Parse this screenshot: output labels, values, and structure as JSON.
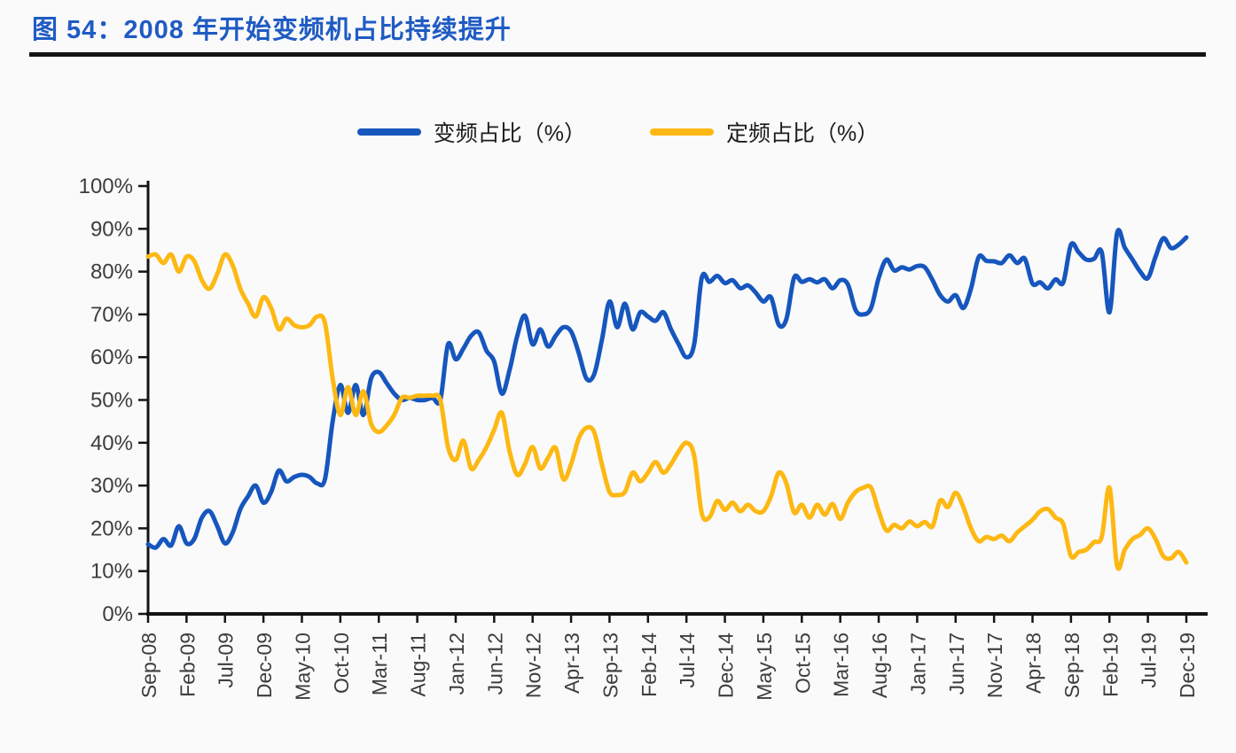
{
  "figure": {
    "title": "图 54：2008 年开始变频机占比持续提升"
  },
  "legend": [
    {
      "label": "变频占比（%）",
      "color": "#1656bd"
    },
    {
      "label": "定频占比（%）",
      "color": "#fdb813"
    }
  ],
  "axes": {
    "y_ticks": [
      "0%",
      "10%",
      "20%",
      "30%",
      "40%",
      "50%",
      "60%",
      "70%",
      "80%",
      "90%",
      "100%"
    ],
    "x_ticks": [
      "Sep-08",
      "Feb-09",
      "Jul-09",
      "Dec-09",
      "May-10",
      "Oct-10",
      "Mar-11",
      "Aug-11",
      "Jan-12",
      "Jun-12",
      "Nov-12",
      "Apr-13",
      "Sep-13",
      "Feb-14",
      "Jul-14",
      "Dec-14",
      "May-15",
      "Oct-15",
      "Mar-16",
      "Aug-16",
      "Jan-17",
      "Jun-17",
      "Nov-17",
      "Apr-18",
      "Sep-18",
      "Feb-19",
      "Jul-19",
      "Dec-19"
    ]
  },
  "colors": {
    "title_blue": "#1f5bc4",
    "axis_text": "#3d3d3d",
    "axis_line": "#141414",
    "background": "#fafafa"
  },
  "chart_data": {
    "type": "line",
    "title": "图 54：2008 年开始变频机占比持续提升",
    "x_resolution": "monthly",
    "x_start": "Sep-08",
    "x_end": "Dec-19",
    "x_tick_labels_shown": [
      "Sep-08",
      "Feb-09",
      "Jul-09",
      "Dec-09",
      "May-10",
      "Oct-10",
      "Mar-11",
      "Aug-11",
      "Jan-12",
      "Jun-12",
      "Nov-12",
      "Apr-13",
      "Sep-13",
      "Feb-14",
      "Jul-14",
      "Dec-14",
      "May-15",
      "Oct-15",
      "Mar-16",
      "Aug-16",
      "Jan-17",
      "Jun-17",
      "Nov-17",
      "Apr-18",
      "Sep-18",
      "Feb-19",
      "Jul-19",
      "Dec-19"
    ],
    "x_tick_step_months": 5,
    "ylim": [
      0,
      100
    ],
    "y_tick_step": 10,
    "grid": false,
    "legend_position": "top-center",
    "line_style": "smooth",
    "series": [
      {
        "name": "变频占比（%）",
        "color": "#1656bd",
        "values": [
          16.3,
          15.5,
          17.5,
          16,
          20.5,
          16.5,
          17.5,
          22.5,
          24,
          20.5,
          16.5,
          19,
          24.5,
          27.5,
          30,
          26,
          28.5,
          33.5,
          31,
          32,
          32.5,
          32,
          30.5,
          31.5,
          45,
          53.5,
          47,
          53.5,
          46.5,
          55,
          56.5,
          54,
          51.5,
          50,
          50.5,
          50,
          50,
          50.5,
          50,
          63,
          59.5,
          62,
          65,
          65.8,
          61.5,
          59,
          51.5,
          57,
          65,
          69.7,
          63,
          66.5,
          62.5,
          65,
          67,
          66,
          61,
          55,
          56,
          64,
          73,
          67,
          72.5,
          66.5,
          70.5,
          69.5,
          68.5,
          70.5,
          66.5,
          63,
          60,
          63,
          78.6,
          77.6,
          79,
          77.3,
          78,
          76.1,
          76.8,
          75.1,
          73,
          74,
          67.6,
          68.9,
          78.6,
          77.6,
          78.2,
          77.5,
          78.2,
          76.1,
          78,
          77,
          71,
          70,
          71.5,
          78.5,
          82.8,
          80.3,
          81,
          80.5,
          81.3,
          81,
          78,
          74.5,
          73,
          74.5,
          71.5,
          76,
          83.4,
          82.5,
          82.4,
          82,
          83.8,
          82,
          83,
          77.2,
          77.5,
          76.1,
          78.2,
          77.5,
          86.3,
          84.5,
          82.8,
          83,
          84.5,
          70.5,
          89,
          85.6,
          82.8,
          80,
          78.5,
          83.5,
          87.8,
          85.5,
          86.3,
          88
        ]
      },
      {
        "name": "定频占比（%）",
        "color": "#fdb813",
        "values": [
          83.5,
          84,
          82,
          84,
          80,
          83.5,
          82.5,
          78,
          76,
          79.5,
          84,
          81.5,
          76,
          72.5,
          69.5,
          74,
          71.5,
          66.5,
          69,
          67.5,
          67,
          67.5,
          69.5,
          68,
          55,
          46.5,
          53,
          46.5,
          52,
          44.5,
          42.5,
          44,
          46.5,
          50.5,
          50.5,
          51,
          51,
          51,
          50,
          39,
          36,
          40.5,
          34,
          36,
          39,
          43,
          47,
          38,
          32.5,
          35,
          39,
          34,
          36.5,
          38.8,
          31.5,
          35,
          41,
          43.5,
          42.5,
          35,
          28.5,
          27.8,
          28.5,
          33,
          31,
          33,
          35.5,
          33,
          35,
          38,
          40,
          37,
          23.5,
          22.6,
          26.4,
          24.3,
          26,
          24,
          25.5,
          24,
          24,
          27.5,
          33,
          30.5,
          23.7,
          25.5,
          22.5,
          25.5,
          23.2,
          25.7,
          22.2,
          26,
          28.5,
          29.5,
          29.5,
          24,
          19.5,
          20.8,
          20,
          21.6,
          20.5,
          21.5,
          20.5,
          26.5,
          25,
          28.3,
          25,
          20,
          17,
          18,
          17.5,
          18.3,
          17,
          19,
          20.5,
          22,
          24,
          24.5,
          22.5,
          21,
          13.5,
          14.5,
          15,
          16.8,
          18,
          29.5,
          11.2,
          15,
          17.5,
          18.5,
          20,
          17.5,
          13.5,
          13,
          14.5,
          12
        ]
      }
    ]
  }
}
